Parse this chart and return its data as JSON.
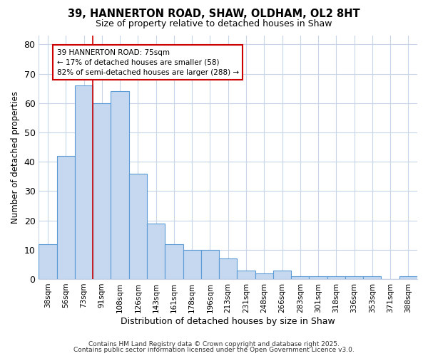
{
  "title_line1": "39, HANNERTON ROAD, SHAW, OLDHAM, OL2 8HT",
  "title_line2": "Size of property relative to detached houses in Shaw",
  "xlabel": "Distribution of detached houses by size in Shaw",
  "ylabel": "Number of detached properties",
  "categories": [
    "38sqm",
    "56sqm",
    "73sqm",
    "91sqm",
    "108sqm",
    "126sqm",
    "143sqm",
    "161sqm",
    "178sqm",
    "196sqm",
    "213sqm",
    "231sqm",
    "248sqm",
    "266sqm",
    "283sqm",
    "301sqm",
    "318sqm",
    "336sqm",
    "353sqm",
    "371sqm",
    "388sqm"
  ],
  "values": [
    12,
    42,
    66,
    60,
    64,
    36,
    19,
    12,
    10,
    10,
    7,
    3,
    2,
    3,
    1,
    1,
    1,
    1,
    1,
    0,
    1
  ],
  "bar_color": "#c5d8f0",
  "bar_edge_color": "#5b9bd5",
  "red_line_x": 2,
  "annotation_text": "39 HANNERTON ROAD: 75sqm\n← 17% of detached houses are smaller (58)\n82% of semi-detached houses are larger (288) →",
  "annotation_box_color": "#ffffff",
  "annotation_box_edge": "#cc0000",
  "footnote1": "Contains HM Land Registry data © Crown copyright and database right 2025.",
  "footnote2": "Contains public sector information licensed under the Open Government Licence v3.0.",
  "fig_background": "#ffffff",
  "plot_background": "#ffffff",
  "grid_color": "#c8d4e8",
  "ylim": [
    0,
    83
  ],
  "yticks": [
    0,
    10,
    20,
    30,
    40,
    50,
    60,
    70,
    80
  ]
}
